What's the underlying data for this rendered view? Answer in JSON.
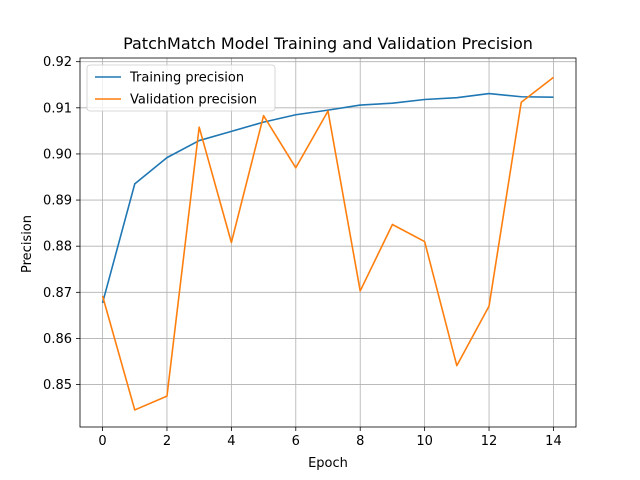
{
  "chart_data": {
    "type": "line",
    "title": "PatchMatch Model Training and Validation Precision",
    "xlabel": "Epoch",
    "ylabel": "Precision",
    "xlim": [
      -0.7,
      14.7
    ],
    "ylim": [
      0.8408,
      0.9208
    ],
    "xticks": [
      0,
      2,
      4,
      6,
      8,
      10,
      12,
      14
    ],
    "yticks": [
      0.85,
      0.86,
      0.87,
      0.88,
      0.89,
      0.9,
      0.91,
      0.92
    ],
    "ytick_labels": [
      "0.85",
      "0.86",
      "0.87",
      "0.88",
      "0.89",
      "0.90",
      "0.91",
      "0.92"
    ],
    "grid": true,
    "legend_position": "upper-left",
    "x": [
      0,
      1,
      2,
      3,
      4,
      5,
      6,
      7,
      8,
      9,
      10,
      11,
      12,
      13,
      14
    ],
    "series": [
      {
        "name": "Training precision",
        "color": "#1f77b4",
        "values": [
          0.8677,
          0.8935,
          0.8992,
          0.9029,
          0.9049,
          0.9069,
          0.9085,
          0.9095,
          0.9106,
          0.911,
          0.9118,
          0.9122,
          0.9131,
          0.9124,
          0.9123
        ]
      },
      {
        "name": "Validation precision",
        "color": "#ff7f0e",
        "values": [
          0.8692,
          0.8445,
          0.8475,
          0.9058,
          0.8808,
          0.9083,
          0.897,
          0.9093,
          0.8703,
          0.8847,
          0.881,
          0.8541,
          0.867,
          0.9112,
          0.9166
        ]
      }
    ]
  }
}
